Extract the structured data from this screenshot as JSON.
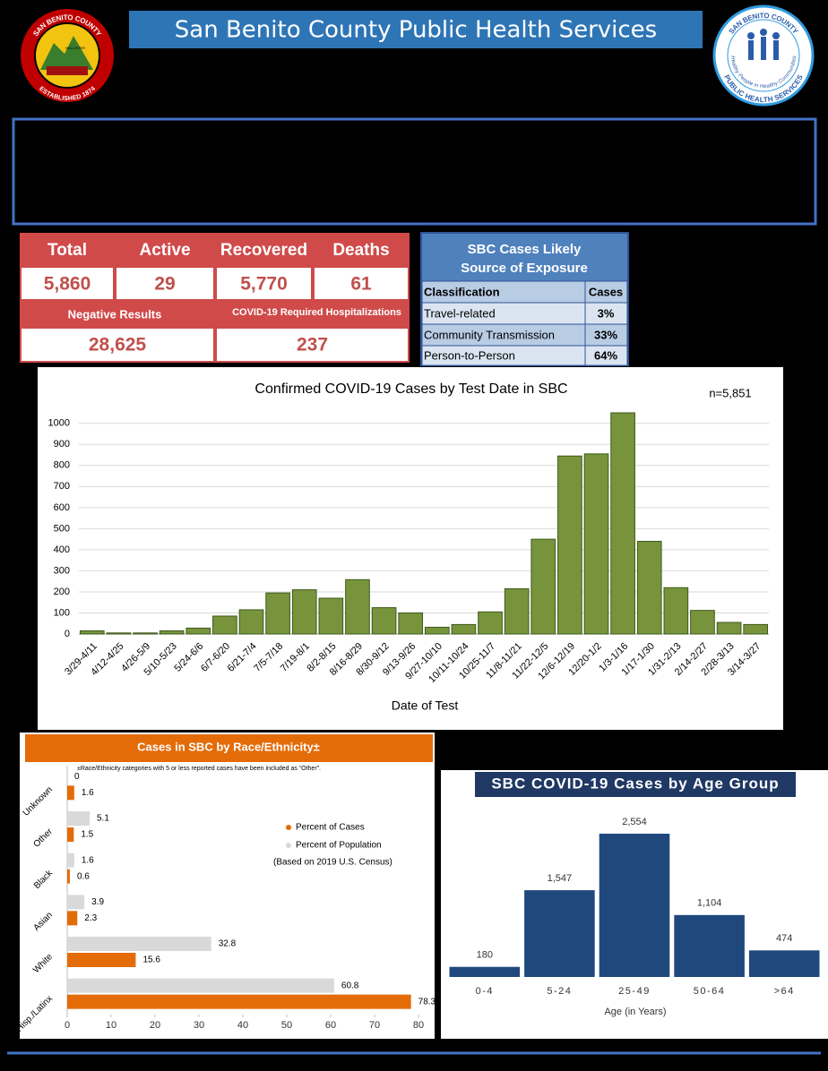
{
  "header": {
    "title": "San Benito County Public Health Services"
  },
  "logos": {
    "county": {
      "top": "SAN BENITO COUNTY",
      "bottom": "ESTABLISHED 1874",
      "place": "HOLLISTER"
    },
    "health": {
      "top": "SAN BENITO COUNTY",
      "bottom": "PUBLIC HEALTH SERVICES",
      "tagline": "Healthy People in Healthy Communities"
    }
  },
  "summary": {
    "headers": [
      "Total",
      "Active",
      "Recovered",
      "Deaths"
    ],
    "values": [
      "5,860",
      "29",
      "5,770",
      "61"
    ],
    "headers2": [
      "Negative Results",
      "COVID-19 Required Hospitalizations"
    ],
    "values2": [
      "28,625",
      "237"
    ]
  },
  "exposure": {
    "title_lines": [
      "SBC Cases Likely",
      "Source of Exposure"
    ],
    "columns": [
      "Classification",
      "Cases"
    ],
    "rows": [
      [
        "Travel-related",
        "3%"
      ],
      [
        "Community Transmission",
        "33%"
      ],
      [
        "Person-to-Person",
        "64%"
      ]
    ]
  },
  "chart_data": [
    {
      "type": "bar",
      "title": "Confirmed COVID-19 Cases by Test Date in SBC",
      "annotation": "n=5,851",
      "x_label": "Date of Test",
      "categories": [
        "3/29-4/11",
        "4/12-4/25",
        "4/26-5/9",
        "5/10-5/23",
        "5/24-6/6",
        "6/7-6/20",
        "6/21-7/4",
        "7/5-7/18",
        "7/19-8/1",
        "8/2-8/15",
        "8/16-8/29",
        "8/30-9/12",
        "9/13-9/26",
        "9/27-10/10",
        "10/11-10/24",
        "10/25-11/7",
        "11/8-11/21",
        "11/22-12/5",
        "12/6-12/19",
        "12/20-1/2",
        "1/3-1/16",
        "1/17-1/30",
        "1/31-2/13",
        "2/14-2/27",
        "2/28-3/13",
        "3/14-3/27"
      ],
      "values": [
        15,
        5,
        5,
        15,
        28,
        85,
        115,
        195,
        210,
        170,
        258,
        125,
        100,
        32,
        45,
        105,
        215,
        450,
        845,
        855,
        1050,
        440,
        220,
        112,
        55,
        45
      ],
      "color": "#77933c",
      "ylim": [
        0,
        1050
      ],
      "yticks": [
        0,
        100,
        200,
        300,
        400,
        500,
        600,
        700,
        800,
        900,
        1000
      ],
      "grid": true
    },
    {
      "type": "hbar",
      "title": "Cases in SBC by Race/Ethnicity±",
      "note": "±Race/Ethnicity categories with 5 or less reported cases have been included as “Other”.",
      "categories": [
        "Unknown",
        "Other",
        "Black",
        "Asian",
        "White",
        "Hisp./Latinx"
      ],
      "series": [
        {
          "name": "Percent of Cases",
          "color": "#e36c09",
          "values": [
            1.6,
            1.5,
            0.6,
            2.3,
            15.6,
            78.3
          ]
        },
        {
          "name": "Percent of Population",
          "color": "#d9d9d9",
          "values": [
            0,
            5.1,
            1.6,
            3.9,
            32.8,
            60.8
          ]
        }
      ],
      "legend_note": "(Based on 2019 U.S. Census)",
      "xlim": [
        0,
        80
      ],
      "xticks": [
        0,
        10,
        20,
        30,
        40,
        50,
        60,
        70,
        80
      ]
    },
    {
      "type": "bar",
      "title": "SBC COVID-19 Cases by Age Group",
      "x_label": "Age (in Years)",
      "categories": [
        "0-4",
        "5-24",
        "25-49",
        "50-64",
        ">64"
      ],
      "values": [
        180,
        1547,
        2554,
        1104,
        474
      ],
      "value_labels": [
        "180",
        "1,547",
        "2,554",
        "1,104",
        "474"
      ],
      "color": "#1f497d"
    }
  ]
}
